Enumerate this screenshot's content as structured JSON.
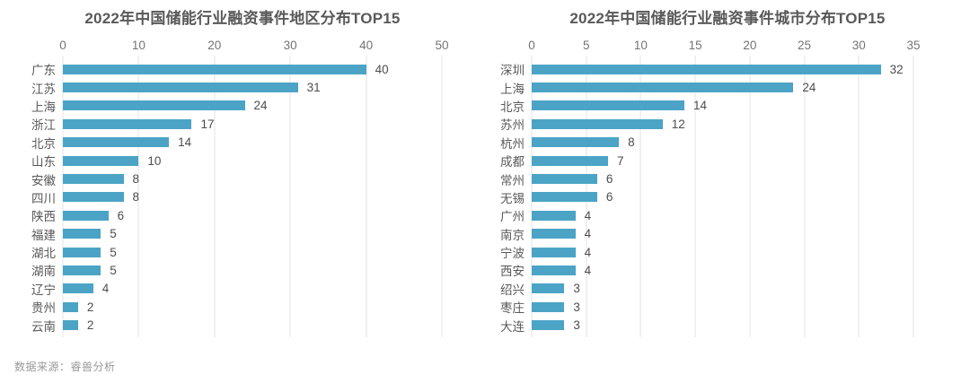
{
  "page": {
    "source_label": "数据来源：睿兽分析"
  },
  "chart_data": [
    {
      "type": "bar",
      "orientation": "horizontal",
      "title": "2022年中国储能行业融资事件地区分布TOP15",
      "categories": [
        "广东",
        "江苏",
        "上海",
        "浙江",
        "北京",
        "山东",
        "安徽",
        "四川",
        "陕西",
        "福建",
        "湖北",
        "湖南",
        "辽宁",
        "贵州",
        "云南"
      ],
      "values": [
        40,
        31,
        24,
        17,
        14,
        10,
        8,
        8,
        6,
        5,
        5,
        5,
        4,
        2,
        2
      ],
      "xlabel": "",
      "ylabel": "",
      "xlim": [
        0,
        50
      ],
      "xticks": [
        0,
        10,
        20,
        30,
        40,
        50
      ],
      "grid": true,
      "legend": false,
      "bar_color": "#4BA4C6",
      "value_labels": true
    },
    {
      "type": "bar",
      "orientation": "horizontal",
      "title": "2022年中国储能行业融资事件城市分布TOP15",
      "categories": [
        "深圳",
        "上海",
        "北京",
        "苏州",
        "杭州",
        "成都",
        "常州",
        "无锡",
        "广州",
        "南京",
        "宁波",
        "西安",
        "绍兴",
        "枣庄",
        "大连"
      ],
      "values": [
        32,
        24,
        14,
        12,
        8,
        7,
        6,
        6,
        4,
        4,
        4,
        4,
        3,
        3,
        3
      ],
      "xlabel": "",
      "ylabel": "",
      "xlim": [
        0,
        35
      ],
      "xticks": [
        0,
        5,
        10,
        15,
        20,
        25,
        30,
        35
      ],
      "grid": true,
      "legend": false,
      "bar_color": "#4BA4C6",
      "value_labels": true
    }
  ]
}
